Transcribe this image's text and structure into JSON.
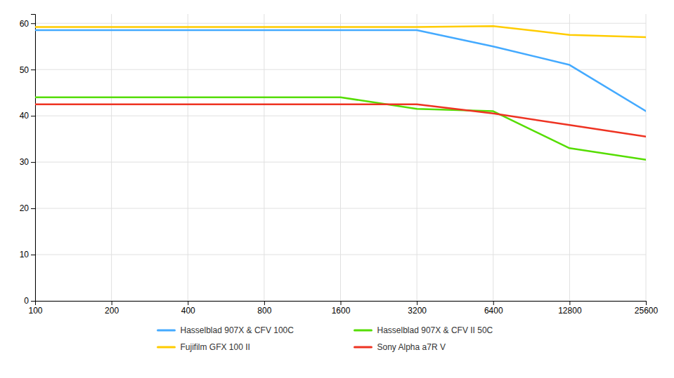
{
  "chart_data": {
    "type": "line",
    "x": [
      100,
      200,
      400,
      800,
      1600,
      3200,
      6400,
      12800,
      25600
    ],
    "series": [
      {
        "name": "Hasselblad 907X & CFV 100C",
        "color": "#44AAFF",
        "values": [
          58.5,
          58.5,
          58.5,
          58.5,
          58.5,
          58.5,
          55.0,
          51.0,
          41.0
        ]
      },
      {
        "name": "Hasselblad 907X & CFV II 50C",
        "color": "#55DD00",
        "values": [
          44.0,
          44.0,
          44.0,
          44.0,
          44.0,
          41.5,
          41.0,
          33.0,
          30.5
        ]
      },
      {
        "name": "Fujifilm GFX 100 II",
        "color": "#FFCC00",
        "values": [
          59.2,
          59.2,
          59.2,
          59.2,
          59.2,
          59.2,
          59.4,
          57.5,
          57.0
        ]
      },
      {
        "name": "Sony Alpha a7R V",
        "color": "#EE3322",
        "values": [
          42.5,
          42.5,
          42.5,
          42.5,
          42.5,
          42.5,
          40.5,
          38.0,
          35.5
        ]
      }
    ],
    "xlim": [
      100,
      25600
    ],
    "xticks": [
      100,
      200,
      400,
      800,
      1600,
      3200,
      6400,
      12800,
      25600
    ],
    "ylim": [
      0,
      62
    ],
    "yticks": [
      0,
      10,
      20,
      30,
      40,
      50,
      60
    ],
    "log": "x",
    "grid": true,
    "legend": "bottom"
  }
}
